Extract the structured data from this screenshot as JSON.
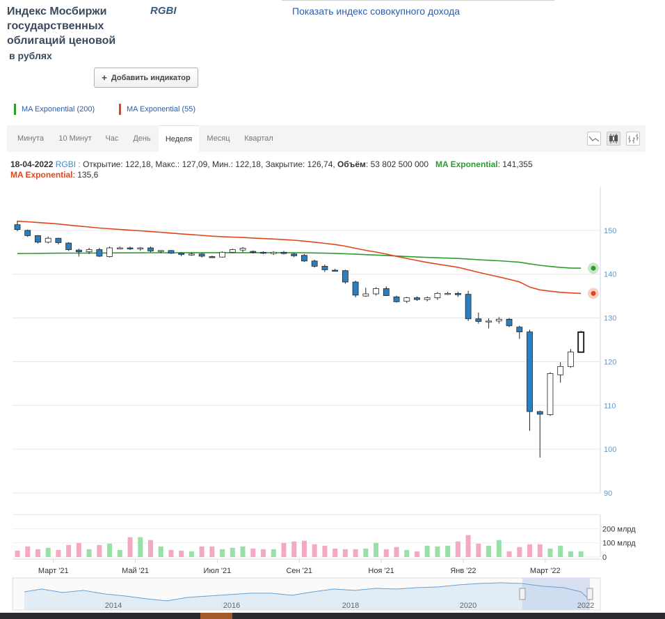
{
  "header": {
    "title": "Индекс Мосбиржи государственных облигаций ценовой",
    "subtitle": "в рублях",
    "ticker": "RGBI",
    "total_return_link": "Показать индекс совокупного дохода",
    "add_indicator_label": "Добавить индикатор"
  },
  "legend": {
    "ma200_label": "MA Exponential (200)",
    "ma55_label": "MA Exponential (55)"
  },
  "timeframes": [
    "Минута",
    "10 Минут",
    "Час",
    "День",
    "Неделя",
    "Месяц",
    "Квартал"
  ],
  "active_timeframe": "Неделя",
  "tools": [
    "line-chart-icon",
    "candlestick-icon",
    "ohlc-bars-icon"
  ],
  "info": {
    "date": "18-04-2022",
    "ticker": "RGBI",
    "ohlc_text": "Открытие: 122,18, Макс.: 127,09, Мин.: 122,18, Закрытие: 126,74,",
    "volume_label": "Объём",
    "volume_value": ": 53 802 500 000",
    "ma200_label": "MA Exponential",
    "ma200_value": ": 141,355",
    "ma55_label": "MA Exponential",
    "ma55_value": ": 135,6"
  },
  "colors": {
    "down": "#2b7fbf",
    "up": "#ffffff",
    "ma200": "#2e9b2e",
    "ma55": "#e0461c",
    "vol_up": "#98dfa8",
    "vol_down": "#f4a9c2"
  },
  "chart_data": {
    "type": "candlestick",
    "title": "RGBI",
    "price_axis": {
      "min": 90,
      "max": 160,
      "ticks": [
        "90",
        "100",
        "110",
        "120",
        "130",
        "140",
        "150"
      ]
    },
    "volume_axis": {
      "max": 300,
      "ticks": [
        "0",
        "100 млрд",
        "200 млрд"
      ]
    },
    "month_labels": [
      "Март '21",
      "Май '21",
      "Июл '21",
      "Сен '21",
      "Ноя '21",
      "Янв '22",
      "Март '22"
    ],
    "month_label_week": [
      1,
      9,
      17,
      25,
      33,
      41,
      49
    ],
    "navigator_years": [
      "2014",
      "2016",
      "2018",
      "2020",
      "2022"
    ],
    "candles": [
      [
        151.3,
        152.2,
        149.8,
        150.2
      ],
      [
        150.0,
        150.2,
        148.5,
        148.8
      ],
      [
        148.8,
        148.9,
        147.0,
        147.3
      ],
      [
        147.3,
        148.6,
        147.0,
        148.2
      ],
      [
        148.2,
        148.3,
        146.8,
        147.2
      ],
      [
        147.1,
        147.3,
        145.3,
        145.6
      ],
      [
        145.5,
        145.8,
        144.0,
        145.1
      ],
      [
        145.1,
        146.0,
        144.6,
        145.6
      ],
      [
        145.6,
        146.0,
        143.9,
        144.1
      ],
      [
        144.0,
        146.3,
        143.8,
        146.0
      ],
      [
        146.0,
        146.3,
        145.7,
        146.0
      ],
      [
        146.0,
        146.3,
        145.5,
        145.8
      ],
      [
        145.8,
        146.2,
        145.3,
        146.0
      ],
      [
        146.0,
        146.3,
        145.0,
        145.3
      ],
      [
        145.3,
        145.5,
        144.8,
        145.4
      ],
      [
        145.4,
        145.5,
        144.6,
        144.8
      ],
      [
        144.8,
        145.0,
        144.1,
        144.5
      ],
      [
        144.5,
        145.0,
        144.2,
        144.6
      ],
      [
        144.6,
        144.8,
        143.8,
        144.1
      ],
      [
        144.0,
        144.2,
        143.7,
        143.9
      ],
      [
        143.9,
        145.2,
        143.8,
        145.0
      ],
      [
        145.0,
        145.8,
        144.8,
        145.6
      ],
      [
        145.5,
        146.2,
        145.0,
        145.9
      ],
      [
        145.2,
        145.4,
        144.7,
        145.0
      ],
      [
        145.0,
        145.2,
        144.6,
        144.8
      ],
      [
        144.7,
        145.2,
        144.4,
        145.0
      ],
      [
        145.0,
        145.3,
        144.5,
        144.7
      ],
      [
        144.6,
        144.8,
        143.9,
        144.2
      ],
      [
        144.3,
        144.6,
        142.8,
        143.0
      ],
      [
        143.0,
        143.3,
        141.5,
        141.8
      ],
      [
        141.8,
        142.2,
        140.5,
        141.0
      ],
      [
        140.9,
        141.2,
        140.6,
        140.8
      ],
      [
        140.8,
        141.0,
        137.8,
        138.2
      ],
      [
        138.2,
        138.5,
        134.7,
        135.2
      ],
      [
        135.0,
        136.9,
        134.8,
        135.5
      ],
      [
        135.5,
        137.0,
        135.1,
        136.7
      ],
      [
        136.7,
        137.2,
        135.0,
        135.1
      ],
      [
        134.8,
        135.1,
        133.5,
        133.7
      ],
      [
        133.8,
        134.8,
        133.4,
        134.6
      ],
      [
        134.6,
        134.9,
        133.9,
        134.2
      ],
      [
        134.2,
        134.9,
        133.8,
        134.6
      ],
      [
        134.6,
        135.9,
        134.1,
        135.6
      ],
      [
        135.6,
        136.0,
        135.2,
        135.6
      ],
      [
        135.6,
        136.0,
        134.8,
        135.3
      ],
      [
        135.4,
        136.2,
        129.3,
        129.8
      ],
      [
        129.8,
        131.2,
        128.7,
        129.2
      ],
      [
        129.2,
        129.9,
        127.6,
        129.3
      ],
      [
        129.3,
        130.2,
        128.7,
        129.7
      ],
      [
        129.7,
        130.0,
        127.9,
        128.2
      ],
      [
        127.9,
        128.2,
        125.2,
        126.8
      ],
      [
        126.8,
        127.3,
        104.2,
        108.6
      ],
      [
        108.6,
        108.8,
        98.1,
        108.0
      ],
      [
        107.9,
        117.6,
        107.6,
        117.3
      ],
      [
        117.0,
        119.9,
        115.2,
        118.9
      ],
      [
        118.9,
        122.9,
        118.6,
        122.2
      ],
      [
        122.18,
        127.09,
        122.18,
        126.74
      ]
    ],
    "volumes": [
      45,
      75,
      55,
      65,
      50,
      85,
      100,
      55,
      85,
      95,
      50,
      140,
      140,
      120,
      75,
      50,
      45,
      40,
      75,
      75,
      55,
      65,
      75,
      60,
      55,
      55,
      100,
      110,
      115,
      90,
      80,
      60,
      55,
      55,
      60,
      100,
      55,
      70,
      50,
      40,
      80,
      75,
      80,
      110,
      155,
      95,
      80,
      120,
      40,
      70,
      90,
      90,
      60,
      80,
      40,
      40
    ],
    "ma200": [
      144.7,
      144.72,
      144.75,
      144.77,
      144.79,
      144.8,
      144.81,
      144.82,
      144.83,
      144.84,
      144.85,
      144.86,
      144.87,
      144.88,
      144.88,
      144.89,
      144.89,
      144.9,
      144.9,
      144.9,
      144.9,
      144.91,
      144.91,
      144.91,
      144.91,
      144.91,
      144.91,
      144.9,
      144.88,
      144.84,
      144.79,
      144.74,
      144.66,
      144.55,
      144.45,
      144.36,
      144.26,
      144.14,
      144.03,
      143.92,
      143.82,
      143.74,
      143.66,
      143.58,
      143.44,
      143.3,
      143.17,
      143.05,
      142.9,
      142.72,
      142.36,
      142.02,
      141.76,
      141.53,
      141.4,
      141.355
    ],
    "ma55": [
      152.1,
      151.97,
      151.79,
      151.63,
      151.45,
      151.21,
      150.98,
      150.78,
      150.54,
      150.37,
      150.2,
      150.04,
      149.89,
      149.72,
      149.56,
      149.38,
      149.2,
      149.04,
      148.86,
      148.68,
      148.56,
      148.46,
      148.37,
      148.25,
      148.13,
      148.02,
      147.9,
      147.75,
      147.55,
      147.31,
      147.04,
      146.77,
      146.39,
      145.9,
      145.44,
      145.04,
      144.58,
      144.06,
      143.6,
      143.12,
      142.68,
      142.3,
      141.93,
      141.56,
      140.99,
      140.42,
      139.87,
      139.37,
      138.82,
      138.22,
      137.05,
      136.4,
      136.1,
      135.85,
      135.7,
      135.6
    ]
  }
}
